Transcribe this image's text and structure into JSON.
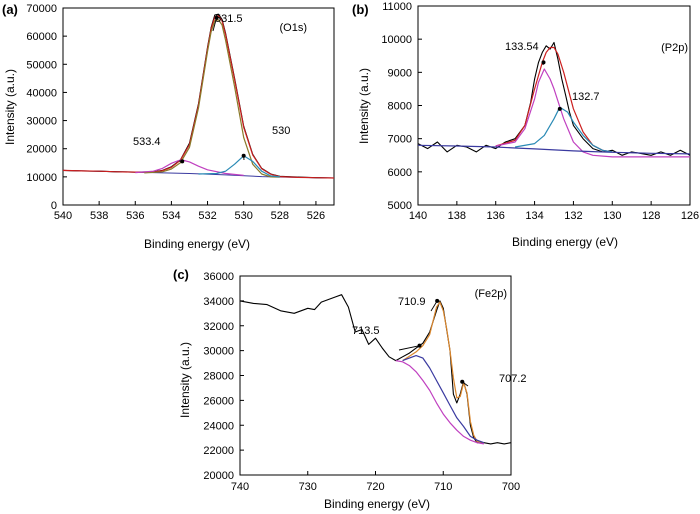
{
  "chart_data": [
    {
      "type": "line",
      "panel": "(a)",
      "tag": "(O1s)",
      "xlabel": "Binding energy (eV)",
      "ylabel": "Intensity (a.u.)",
      "xlim": [
        540,
        525
      ],
      "ylim": [
        0,
        70000
      ],
      "x_reversed": true,
      "xticks": [
        540,
        538,
        536,
        534,
        532,
        530,
        528,
        526
      ],
      "yticks": [
        0,
        10000,
        20000,
        30000,
        40000,
        50000,
        60000,
        70000
      ],
      "annotations": [
        {
          "text": "531.5",
          "x": 531.5,
          "y": 66500
        },
        {
          "text": "533.4",
          "x": 533.4,
          "y": 15500
        },
        {
          "text": "530",
          "x": 530,
          "y": 17500
        }
      ],
      "background": [
        [
          540,
          12300
        ],
        [
          537,
          11800
        ],
        [
          535,
          11500
        ],
        [
          533,
          11200
        ],
        [
          531,
          10700
        ],
        [
          529,
          10100
        ],
        [
          527,
          9800
        ],
        [
          525,
          9600
        ]
      ],
      "series": [
        {
          "color": "#000000",
          "x": [
            540,
            539,
            538,
            537,
            536,
            535,
            534.5,
            534,
            533.5,
            533,
            532.5,
            532,
            531.8,
            531.6,
            531.4,
            531.2,
            531,
            530.5,
            530,
            529.5,
            529,
            528.5,
            528,
            527,
            526,
            525
          ],
          "y": [
            12300,
            12100,
            12000,
            11800,
            11700,
            11800,
            12300,
            13600,
            16000,
            22000,
            36000,
            56000,
            63000,
            67500,
            67800,
            66000,
            61000,
            45000,
            28000,
            18000,
            13000,
            11000,
            10200,
            9900,
            9700,
            9600
          ]
        },
        {
          "color": "#cc1f1f",
          "x": [
            540,
            539,
            538,
            537,
            536,
            535,
            534.5,
            534,
            533.5,
            533,
            532.5,
            532,
            531.8,
            531.6,
            531.4,
            531.2,
            531,
            530.5,
            530,
            529.5,
            529,
            528.5,
            528,
            527,
            526,
            525
          ],
          "y": [
            12300,
            12100,
            12000,
            11800,
            11700,
            11700,
            12200,
            13400,
            15900,
            21500,
            35500,
            55500,
            62500,
            66800,
            67200,
            65500,
            60500,
            44500,
            27600,
            17800,
            12900,
            10900,
            10100,
            9800,
            9700,
            9600
          ]
        },
        {
          "color": "#8a7a2a",
          "x": [
            535.5,
            534.5,
            534,
            533.5,
            533,
            532.5,
            532,
            531.8,
            531.6,
            531.4,
            531.2,
            531,
            530.5,
            530,
            529.5,
            529,
            528.5,
            528
          ],
          "y": [
            11400,
            11800,
            12800,
            15000,
            20500,
            34500,
            54500,
            61500,
            65500,
            65800,
            64000,
            58500,
            42000,
            24000,
            14500,
            11000,
            10000,
            9900
          ]
        },
        {
          "color": "#c040c0",
          "x": [
            536,
            535,
            534.5,
            534,
            533.6,
            533.4,
            533,
            532.5,
            532,
            531,
            530
          ],
          "y": [
            11500,
            12000,
            13000,
            14800,
            15800,
            16000,
            15300,
            13800,
            12500,
            11200,
            10500
          ]
        },
        {
          "color": "#2a8ab5",
          "x": [
            532.5,
            531.5,
            531,
            530.5,
            530,
            529.5,
            529,
            528.5,
            528
          ],
          "y": [
            11000,
            11200,
            12000,
            14500,
            17500,
            15500,
            12000,
            10300,
            10000
          ]
        }
      ]
    },
    {
      "type": "line",
      "panel": "(b)",
      "tag": "(P2p)",
      "xlabel": "Binding energy (eV)",
      "ylabel": "Intensity (a.u.)",
      "xlim": [
        140,
        126
      ],
      "ylim": [
        5000,
        11000
      ],
      "x_reversed": true,
      "xticks": [
        140,
        138,
        136,
        134,
        132,
        130,
        128,
        126
      ],
      "yticks": [
        5000,
        6000,
        7000,
        8000,
        9000,
        10000,
        11000
      ],
      "annotations": [
        {
          "text": "133.54",
          "x": 133.54,
          "y": 9300
        },
        {
          "text": "132.7",
          "x": 132.7,
          "y": 7900
        }
      ],
      "series": [
        {
          "color": "#000000",
          "x": [
            140,
            139.5,
            139,
            138.5,
            138,
            137.5,
            137,
            136.5,
            136,
            135.5,
            135,
            134.5,
            134.2,
            134,
            133.8,
            133.6,
            133.4,
            133.2,
            133,
            132.8,
            132.6,
            132.4,
            132.2,
            132,
            131.5,
            131,
            130.5,
            130,
            129.5,
            129,
            128.5,
            128,
            127.5,
            127,
            126.5,
            126
          ],
          "y": [
            6850,
            6700,
            6900,
            6600,
            6800,
            6750,
            6600,
            6800,
            6700,
            6900,
            7000,
            7400,
            8100,
            8800,
            9300,
            9600,
            9800,
            9700,
            9900,
            9400,
            8800,
            8300,
            7800,
            7400,
            7000,
            6700,
            6600,
            6650,
            6500,
            6600,
            6550,
            6500,
            6600,
            6500,
            6650,
            6500
          ]
        },
        {
          "color": "#cc1f1f",
          "x": [
            136,
            135,
            134.5,
            134,
            133.6,
            133.4,
            133.2,
            133,
            132.8,
            132.5,
            132,
            131.5,
            131,
            130.5,
            130
          ],
          "y": [
            6780,
            6950,
            7400,
            8500,
            9300,
            9600,
            9750,
            9750,
            9550,
            9000,
            7900,
            7200,
            6800,
            6650,
            6600
          ]
        },
        {
          "color": "#c040c0",
          "x": [
            136,
            135,
            134.5,
            134,
            133.8,
            133.5,
            133.2,
            133,
            132.5,
            132,
            131.5,
            131,
            130,
            128,
            126
          ],
          "y": [
            6780,
            6900,
            7300,
            8200,
            8700,
            9100,
            8800,
            8500,
            7600,
            6900,
            6600,
            6500,
            6450,
            6450,
            6450
          ]
        },
        {
          "color": "#2a8ab5",
          "x": [
            135,
            134,
            133.5,
            133,
            132.7,
            132.3,
            132,
            131.5,
            131,
            130.5,
            130
          ],
          "y": [
            6750,
            6850,
            7100,
            7600,
            7950,
            7800,
            7500,
            7100,
            6800,
            6650,
            6600
          ]
        },
        {
          "color": "#3a3aa0",
          "x": [
            140,
            138,
            136,
            135,
            134,
            133,
            132,
            131,
            130,
            128,
            126
          ],
          "y": [
            6800,
            6780,
            6750,
            6720,
            6690,
            6660,
            6630,
            6610,
            6590,
            6560,
            6540
          ]
        }
      ]
    },
    {
      "type": "line",
      "panel": "(c)",
      "tag": "(Fe2p)",
      "xlabel": "Binding energy (eV)",
      "ylabel": "Intensity (a.u.)",
      "xlim": [
        740,
        700
      ],
      "ylim": [
        20000,
        36000
      ],
      "x_reversed": true,
      "xticks": [
        740,
        730,
        720,
        710,
        700
      ],
      "yticks": [
        20000,
        22000,
        24000,
        26000,
        28000,
        30000,
        32000,
        34000,
        36000
      ],
      "annotations": [
        {
          "text": "710.9",
          "x": 710.9,
          "y": 34000
        },
        {
          "text": "713.5",
          "x": 713.5,
          "y": 30400
        },
        {
          "text": "707.2",
          "x": 707.2,
          "y": 27500
        }
      ],
      "series": [
        {
          "color": "#000000",
          "x": [
            740,
            738,
            736,
            734,
            732,
            730,
            729,
            728,
            727,
            726,
            725,
            724,
            723,
            722,
            721,
            720,
            719,
            718,
            717,
            716,
            715,
            714,
            713,
            712,
            711,
            710.5,
            710,
            709,
            708.5,
            708,
            707.5,
            707,
            706.5,
            706,
            705.5,
            705,
            704,
            703,
            702,
            701,
            700
          ],
          "y": [
            34000,
            33800,
            33700,
            33200,
            33000,
            33400,
            33300,
            33900,
            34100,
            34300,
            34500,
            33500,
            31500,
            31700,
            30500,
            31000,
            30200,
            29500,
            29200,
            29500,
            29800,
            30200,
            30600,
            31500,
            33200,
            34000,
            33400,
            30000,
            26500,
            25800,
            26500,
            27500,
            26500,
            24000,
            23000,
            22600,
            22600,
            22500,
            22600,
            22500,
            22600
          ]
        },
        {
          "color": "#d9852b",
          "x": [
            716,
            714,
            713,
            712,
            711.5,
            711,
            710.5,
            710,
            709.5,
            709,
            708.5,
            708,
            707.5,
            707,
            706.5,
            706,
            705.5,
            705,
            704
          ],
          "y": [
            29200,
            29900,
            30400,
            31300,
            32400,
            33500,
            33900,
            33200,
            31800,
            30000,
            27800,
            26200,
            26300,
            27400,
            26600,
            24300,
            23200,
            22700,
            22600
          ]
        },
        {
          "color": "#3a3aa0",
          "x": [
            716,
            714,
            713,
            712,
            711,
            710,
            709,
            708,
            707,
            706,
            705,
            704
          ],
          "y": [
            29200,
            29600,
            29400,
            28600,
            27600,
            26600,
            25600,
            24600,
            23900,
            23100,
            22800,
            22600
          ]
        },
        {
          "color": "#c040c0",
          "x": [
            717,
            716,
            715,
            714,
            713,
            712,
            711,
            710,
            709,
            708,
            707,
            706,
            705,
            704
          ],
          "y": [
            29200,
            29100,
            28800,
            28300,
            27600,
            26800,
            25800,
            24900,
            24200,
            23600,
            23100,
            22800,
            22600,
            22500
          ]
        }
      ]
    }
  ]
}
